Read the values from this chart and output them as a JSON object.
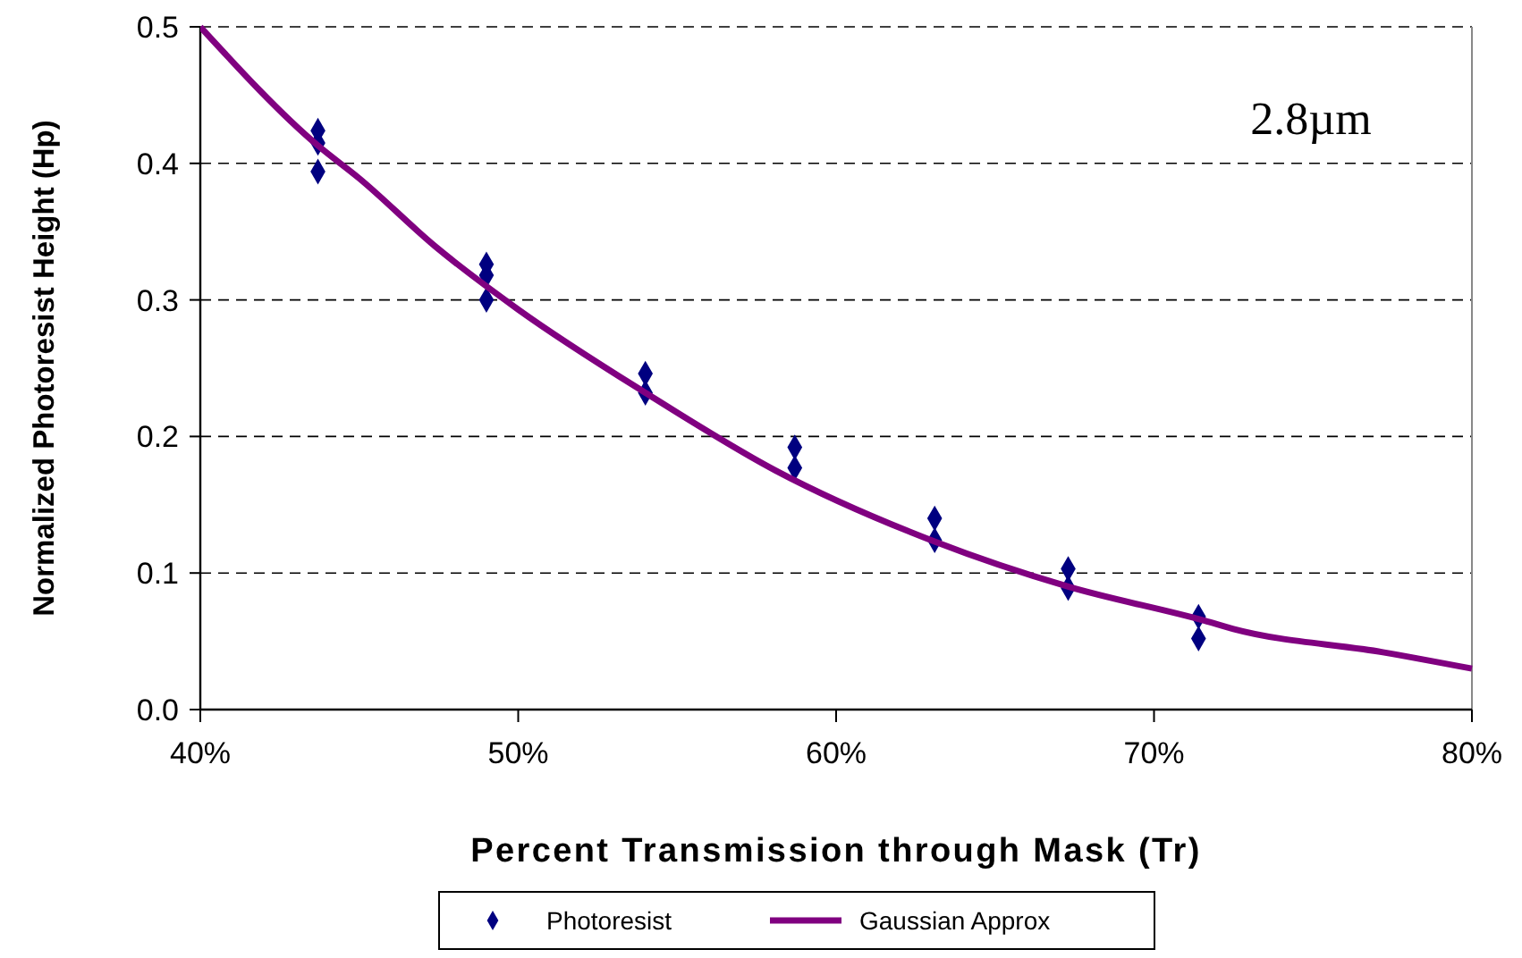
{
  "chart_data": {
    "type": "scatter",
    "xlabel": "Percent Transmission through Mask (Tr)",
    "ylabel": "Normalized Photoresist Height (Hp)",
    "annotations": [
      "2.8µm"
    ],
    "xlim": [
      40,
      80
    ],
    "xticks": [
      {
        "value": 40,
        "label": "40%"
      },
      {
        "value": 50,
        "label": "50%"
      },
      {
        "value": 60,
        "label": "60%"
      },
      {
        "value": 70,
        "label": "70%"
      },
      {
        "value": 80,
        "label": "80%"
      }
    ],
    "ylim": [
      0,
      0.5
    ],
    "yticks": [
      {
        "value": 0,
        "label": "0.0"
      },
      0.1,
      0.2,
      0.3,
      0.4,
      0.5
    ],
    "grid": "y",
    "legend": "bottom",
    "series": [
      {
        "name": "Photoresist",
        "marker": "diamond",
        "color": "#000080",
        "x": [
          43.7,
          43.7,
          43.7,
          49,
          49,
          49,
          54,
          54,
          58.7,
          58.7,
          63.1,
          63.1,
          67.3,
          67.3,
          71.4,
          71.4
        ],
        "values": [
          0.424,
          0.415,
          0.394,
          0.326,
          0.318,
          0.3,
          0.246,
          0.232,
          0.192,
          0.177,
          0.14,
          0.124,
          0.103,
          0.089,
          0.068,
          0.052
        ]
      },
      {
        "name": "Gaussian Approx",
        "type": "line",
        "marker": "none",
        "line_style": "solid",
        "color": "#800080",
        "x": [
          40,
          43.7,
          45,
          47.4,
          50,
          54,
          58.1,
          63.1,
          67.3,
          71.6,
          72.5,
          77.2,
          80
        ],
        "values": [
          0.5,
          0.413,
          0.389,
          0.339,
          0.293,
          0.232,
          0.175,
          0.123,
          0.09,
          0.065,
          0.059,
          0.042,
          0.03
        ]
      }
    ]
  }
}
